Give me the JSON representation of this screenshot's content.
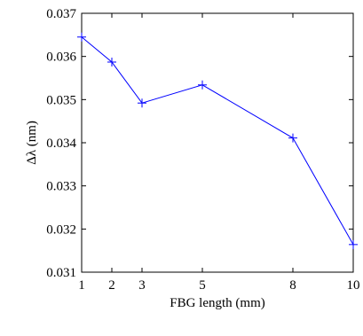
{
  "chart_data": {
    "type": "line",
    "title": "",
    "xlabel": "FBG length (mm)",
    "ylabel": "Δλ (nm)",
    "xlim": [
      1,
      10
    ],
    "ylim": [
      0.031,
      0.037
    ],
    "x_ticks": [
      1,
      2,
      3,
      5,
      8,
      10
    ],
    "y_ticks": [
      0.031,
      0.032,
      0.033,
      0.034,
      0.035,
      0.036,
      0.037
    ],
    "grid": false,
    "legend": "none",
    "series": [
      {
        "color": "#0000ff",
        "marker": "+",
        "x": [
          1,
          2,
          3,
          5,
          8,
          10
        ],
        "y": [
          0.03645,
          0.03587,
          0.03492,
          0.03534,
          0.03411,
          0.03164
        ]
      }
    ]
  }
}
